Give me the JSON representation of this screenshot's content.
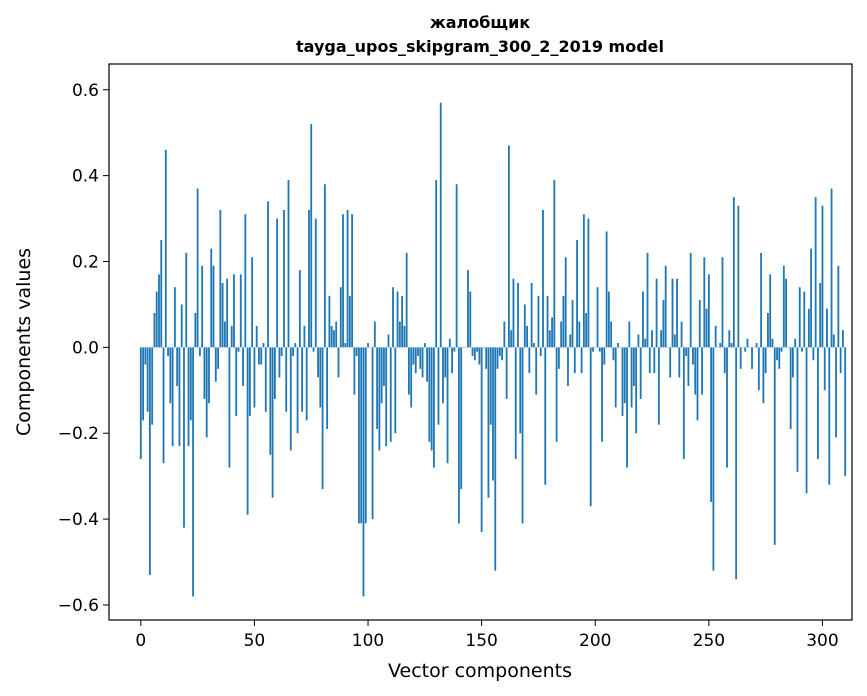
{
  "chart_data": {
    "type": "bar",
    "title": "жалобщик",
    "subtitle": "tayga_upos_skipgram_300_2_2019 model",
    "xlabel": "Vector components",
    "ylabel": "Components values",
    "xlim": [
      -14,
      313
    ],
    "ylim": [
      -0.635,
      0.66
    ],
    "xticks": [
      0,
      50,
      100,
      150,
      200,
      250,
      300
    ],
    "yticks": [
      -0.6,
      -0.4,
      -0.2,
      0.0,
      0.2,
      0.4,
      0.6
    ],
    "xtick_labels": [
      "0",
      "50",
      "100",
      "150",
      "200",
      "250",
      "300"
    ],
    "ytick_labels": [
      "−0.6",
      "−0.4",
      "−0.2",
      "0.0",
      "0.2",
      "0.4",
      "0.6"
    ],
    "bar_color": "#1f77b4",
    "values": [
      -0.26,
      -0.17,
      -0.04,
      -0.15,
      -0.53,
      -0.18,
      0.08,
      0.13,
      0.17,
      0.25,
      -0.27,
      0.46,
      -0.02,
      -0.13,
      -0.23,
      0.14,
      -0.09,
      -0.23,
      0.1,
      -0.42,
      0.22,
      -0.23,
      -0.17,
      -0.58,
      0.08,
      0.37,
      -0.02,
      0.19,
      -0.12,
      -0.21,
      -0.13,
      0.23,
      0.19,
      -0.08,
      -0.05,
      0.32,
      0.15,
      0.06,
      0.16,
      -0.28,
      0.05,
      0.17,
      -0.16,
      -0.01,
      0.17,
      -0.09,
      0.31,
      -0.39,
      -0.16,
      0.21,
      -0.14,
      0.05,
      -0.04,
      -0.04,
      0.01,
      -0.15,
      0.34,
      -0.25,
      -0.35,
      -0.12,
      0.3,
      -0.07,
      -0.02,
      0.32,
      -0.15,
      0.39,
      -0.24,
      -0.02,
      0.01,
      -0.2,
      0.18,
      -0.15,
      0.05,
      -0.17,
      0.32,
      0.52,
      -0.01,
      0.3,
      -0.07,
      -0.14,
      -0.33,
      0.38,
      -0.19,
      0.12,
      0.05,
      0.04,
      0.06,
      -0.07,
      0.14,
      0.31,
      0.01,
      0.32,
      0.12,
      0.31,
      -0.11,
      -0.02,
      -0.41,
      -0.41,
      -0.58,
      -0.41,
      0.01,
      0.0,
      -0.4,
      0.06,
      -0.19,
      -0.24,
      -0.13,
      -0.09,
      -0.23,
      0.03,
      -0.22,
      0.14,
      -0.2,
      0.13,
      0.06,
      0.12,
      0.05,
      0.22,
      -0.11,
      -0.14,
      -0.04,
      -0.06,
      -0.02,
      -0.05,
      -0.07,
      0.01,
      -0.08,
      -0.22,
      -0.24,
      -0.28,
      0.39,
      -0.18,
      0.57,
      -0.13,
      -0.07,
      -0.27,
      0.02,
      -0.06,
      -0.01,
      0.38,
      -0.41,
      -0.33,
      0.0,
      0.0,
      0.18,
      0.13,
      -0.02,
      -0.03,
      -0.01,
      -0.04,
      -0.43,
      0.0,
      -0.05,
      -0.35,
      -0.18,
      -0.31,
      -0.52,
      -0.05,
      -0.02,
      -0.03,
      0.06,
      -0.12,
      0.47,
      0.04,
      0.16,
      -0.26,
      0.15,
      -0.2,
      -0.41,
      0.1,
      0.05,
      -0.06,
      0.15,
      0.01,
      -0.11,
      0.12,
      -0.02,
      0.32,
      -0.32,
      0.12,
      0.04,
      0.07,
      0.39,
      -0.22,
      -0.05,
      0.06,
      0.12,
      0.21,
      -0.09,
      0.03,
      0.11,
      -0.06,
      0.25,
      0.06,
      -0.06,
      0.31,
      0.08,
      0.3,
      -0.37,
      -0.01,
      0.0,
      0.14,
      -0.01,
      -0.22,
      -0.04,
      0.27,
      0.13,
      0.06,
      -0.03,
      -0.14,
      0.01,
      0.0,
      -0.16,
      -0.13,
      -0.28,
      0.06,
      -0.14,
      -0.09,
      -0.2,
      0.03,
      -0.12,
      0.13,
      0.02,
      0.22,
      -0.06,
      0.04,
      -0.06,
      0.16,
      -0.18,
      0.04,
      0.11,
      0.19,
      0.0,
      -0.07,
      0.16,
      0.03,
      0.16,
      -0.07,
      0.06,
      -0.26,
      -0.02,
      -0.09,
      0.22,
      -0.04,
      -0.11,
      -0.17,
      0.11,
      -0.11,
      0.21,
      0.09,
      0.17,
      -0.36,
      -0.52,
      0.05,
      0.0,
      0.01,
      0.21,
      -0.06,
      -0.28,
      0.04,
      0.01,
      0.35,
      -0.54,
      0.33,
      -0.05,
      0.0,
      -0.01,
      0.02,
      0.0,
      -0.05,
      0.0,
      0.01,
      -0.1,
      0.22,
      -0.13,
      -0.06,
      0.08,
      0.17,
      0.02,
      -0.46,
      -0.03,
      -0.05,
      -0.01,
      0.19,
      0.16,
      0.0,
      -0.19,
      -0.07,
      0.02,
      -0.29,
      0.14,
      -0.01,
      0.13,
      -0.34,
      0.09,
      0.23,
      -0.03,
      0.35,
      -0.26,
      0.15,
      0.33,
      -0.1,
      0.09,
      -0.32,
      0.37,
      0.03,
      -0.21,
      0.19,
      -0.06,
      0.04,
      -0.3
    ]
  }
}
